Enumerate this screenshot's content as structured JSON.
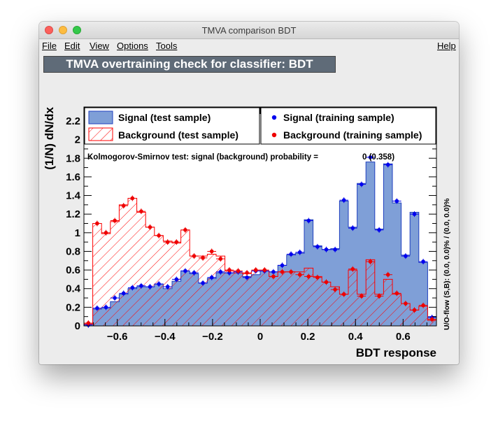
{
  "window": {
    "title": "TMVA comparison BDT"
  },
  "menu": {
    "file": "File",
    "edit": "Edit",
    "view": "View",
    "options": "Options",
    "tools": "Tools",
    "help": "Help"
  },
  "colors": {
    "signal_fill": "#7f9fd7",
    "signal_line": "#1f3fbf",
    "signal_marker": "#0000ee",
    "background_hatch": "#ff0000",
    "background_marker": "#ee0000",
    "banner": "#5f6b78"
  },
  "chart_data": {
    "type": "histogram",
    "title": "TMVA overtraining check for classifier: BDT",
    "xlabel": "BDT response",
    "ylabel": "(1/N) dN/dx",
    "xlim": [
      -0.74,
      0.74
    ],
    "ylim": [
      0,
      2.35
    ],
    "xticks": [
      -0.6,
      -0.4,
      -0.2,
      0,
      0.2,
      0.4,
      0.6
    ],
    "xtick_labels": [
      "−0.6",
      "−0.4",
      "−0.2",
      "0",
      "0.2",
      "0.4",
      "0.6"
    ],
    "yticks": [
      0,
      0.2,
      0.4,
      0.6,
      0.8,
      1,
      1.2,
      1.4,
      1.6,
      1.8,
      2,
      2.2
    ],
    "ytick_labels": [
      "0",
      "0.2",
      "0.4",
      "0.6",
      "0.8",
      "1",
      "1.2",
      "1.4",
      "1.6",
      "1.8",
      "2",
      "2.2"
    ],
    "bin_edges_range": [
      -0.74,
      0.74
    ],
    "n_bins": 40,
    "legend": [
      {
        "label": "Signal (test sample)",
        "style": "fill"
      },
      {
        "label": "Background (test sample)",
        "style": "hatch"
      },
      {
        "label": "Signal (training sample)",
        "style": "marker"
      },
      {
        "label": "Background (training sample)",
        "style": "marker"
      }
    ],
    "ks_text": "Kolmogorov-Smirnov test: signal (background) probability =",
    "ks_value": "0 (0.358)",
    "overflow_text": "U/O-flow (S,B): (0.0, 0.0)% / (0.0, 0.0)%",
    "series": [
      {
        "name": "Signal (test sample)",
        "type": "hist-filled",
        "values": [
          0.03,
          0.18,
          0.19,
          0.26,
          0.34,
          0.4,
          0.42,
          0.42,
          0.45,
          0.4,
          0.48,
          0.59,
          0.56,
          0.46,
          0.51,
          0.57,
          0.57,
          0.57,
          0.53,
          0.55,
          0.59,
          0.58,
          0.65,
          0.76,
          0.78,
          1.14,
          0.86,
          0.82,
          0.83,
          1.34,
          1.06,
          1.53,
          1.76,
          1.04,
          1.74,
          1.32,
          0.76,
          1.22,
          0.68,
          0.1
        ]
      },
      {
        "name": "Background (test sample)",
        "type": "hist-hatched",
        "values": [
          0.02,
          1.1,
          0.99,
          1.12,
          1.3,
          1.37,
          1.22,
          1.06,
          0.97,
          0.91,
          0.89,
          1.03,
          0.75,
          0.75,
          0.77,
          0.75,
          0.59,
          0.57,
          0.56,
          0.59,
          0.59,
          0.53,
          0.58,
          0.58,
          0.58,
          0.62,
          0.53,
          0.47,
          0.42,
          0.34,
          0.6,
          0.34,
          0.71,
          0.34,
          0.5,
          0.34,
          0.24,
          0.17,
          0.21,
          0.06
        ]
      },
      {
        "name": "Signal (training sample)",
        "type": "points",
        "values": [
          0.01,
          0.19,
          0.2,
          0.3,
          0.35,
          0.41,
          0.43,
          0.42,
          0.45,
          0.42,
          0.5,
          0.59,
          0.57,
          0.46,
          0.52,
          0.58,
          0.57,
          0.58,
          0.52,
          0.59,
          0.59,
          0.58,
          0.65,
          0.77,
          0.79,
          1.13,
          0.85,
          0.82,
          0.82,
          1.35,
          1.05,
          1.52,
          1.81,
          1.03,
          1.73,
          1.34,
          0.75,
          1.2,
          0.69,
          0.09
        ]
      },
      {
        "name": "Background (training sample)",
        "type": "points",
        "values": [
          0.03,
          1.1,
          1.0,
          1.13,
          1.29,
          1.37,
          1.23,
          1.06,
          0.97,
          0.9,
          0.9,
          1.03,
          0.75,
          0.73,
          0.8,
          0.72,
          0.6,
          0.59,
          0.57,
          0.6,
          0.6,
          0.53,
          0.58,
          0.58,
          0.55,
          0.53,
          0.52,
          0.47,
          0.39,
          0.34,
          0.61,
          0.32,
          0.69,
          0.32,
          0.55,
          0.35,
          0.24,
          0.17,
          0.22,
          0.07
        ]
      }
    ]
  }
}
